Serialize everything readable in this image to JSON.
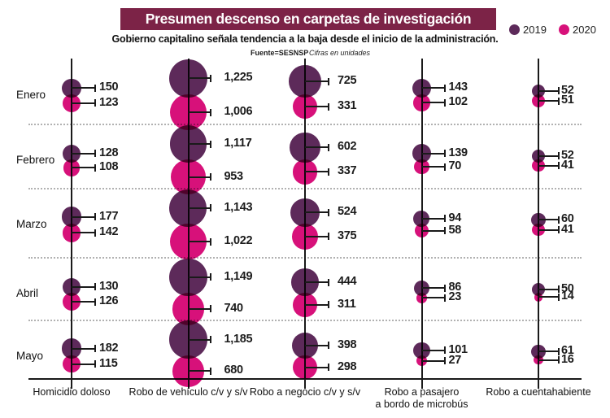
{
  "header": {
    "title": "Presumen descenso en carpetas de investigación",
    "subtitle": "Gobierno capitalino señala tendencia a la baja desde el inicio de la administración.",
    "source_label": "Fuente=",
    "source_value": "SESNSP",
    "units_note": "Cifras en unidades",
    "banner_color": "#7c2347"
  },
  "legend": [
    {
      "label": "2019",
      "color": "#5d2a5a"
    },
    {
      "label": "2020",
      "color": "#d7117a"
    }
  ],
  "chart_data": {
    "type": "bubble",
    "title": "Presumen descenso en carpetas de investigación",
    "rows": [
      "Enero",
      "Febrero",
      "Marzo",
      "Abril",
      "Mayo"
    ],
    "columns": [
      {
        "label": "Homicidio doloso",
        "lines": [
          "Homicidio doloso"
        ]
      },
      {
        "label": "Robo de vehículo c/v y s/v",
        "lines": [
          "Robo de vehículo c/v y s/v"
        ]
      },
      {
        "label": "Robo a negocio c/v y s/v",
        "lines": [
          "Robo a negocio c/v y s/v"
        ]
      },
      {
        "label": "Robo a pasajero a bordo de microbús",
        "lines": [
          "Robo a pasajero",
          "a bordo de microbús"
        ]
      },
      {
        "label": "Robo a cuentahabiente",
        "lines": [
          "Robo a cuentahabiente"
        ]
      }
    ],
    "series": [
      {
        "name": "2019",
        "color": "#5d2a5a",
        "values": [
          [
            150,
            1225,
            725,
            143,
            52
          ],
          [
            128,
            1117,
            602,
            139,
            52
          ],
          [
            177,
            1143,
            524,
            94,
            60
          ],
          [
            130,
            1149,
            444,
            86,
            50
          ],
          [
            182,
            1185,
            398,
            101,
            61
          ]
        ]
      },
      {
        "name": "2020",
        "color": "#d7117a",
        "values": [
          [
            123,
            1006,
            331,
            102,
            51
          ],
          [
            108,
            953,
            337,
            70,
            41
          ],
          [
            142,
            1022,
            375,
            58,
            41
          ],
          [
            126,
            740,
            311,
            23,
            14
          ],
          [
            115,
            680,
            298,
            27,
            16
          ]
        ]
      }
    ],
    "units_note": "Cifras en unidades",
    "source": "SESNSP"
  }
}
